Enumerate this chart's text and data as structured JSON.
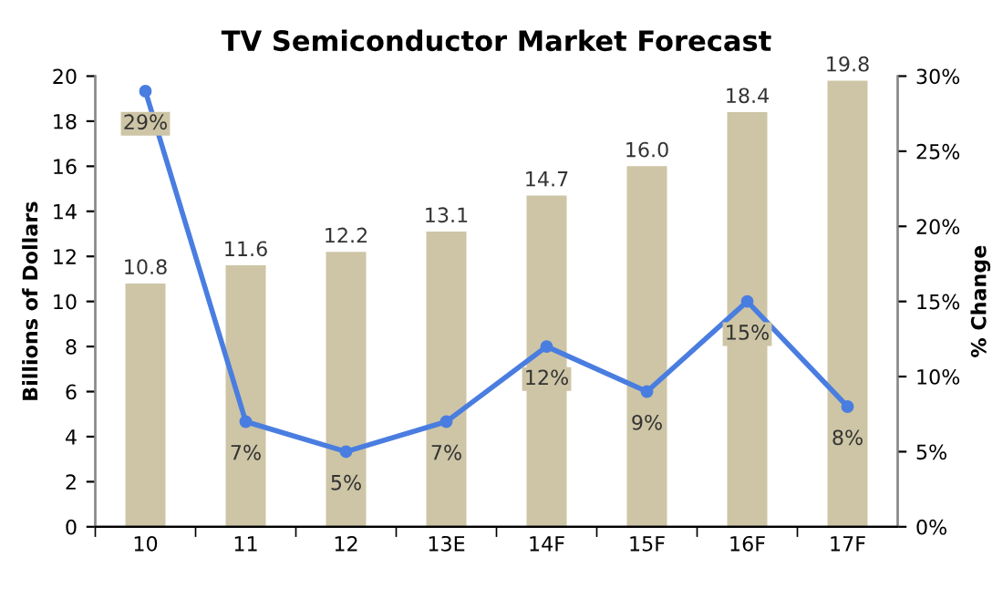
{
  "chart_data": {
    "type": "bar",
    "title": "TV Semiconductor Market Forecast",
    "ylabel": "Billions of Dollars",
    "y2label": "% Change",
    "categories": [
      "10",
      "11",
      "12",
      "13E",
      "14F",
      "15F",
      "16F",
      "17F"
    ],
    "series": [
      {
        "color": "#cdc5a5",
        "values": [
          10.8,
          11.6,
          12.2,
          13.1,
          14.7,
          16.0,
          18.4,
          19.8
        ],
        "value_labels": [
          "10.8",
          "11.6",
          "12.2",
          "13.1",
          "14.7",
          "16.0",
          "18.4",
          "19.8"
        ]
      },
      {
        "type": "line",
        "axis": "y2",
        "color": "#4a7de0",
        "marker": "circle",
        "line_style": "solid",
        "values": [
          29,
          7,
          5,
          7,
          12,
          9,
          15,
          8
        ],
        "value_labels": [
          "29%",
          "7%",
          "5%",
          "7%",
          "12%",
          "9%",
          "15%",
          "8%"
        ]
      }
    ],
    "ylim": [
      0,
      20
    ],
    "yticks": [
      0,
      2,
      4,
      6,
      8,
      10,
      12,
      14,
      16,
      18,
      20
    ],
    "y2lim": [
      0,
      30
    ],
    "y2ticks": [
      {
        "value": 0,
        "label": "0%"
      },
      {
        "value": 5,
        "label": "5%"
      },
      {
        "value": 10,
        "label": "10%"
      },
      {
        "value": 15,
        "label": "15%"
      },
      {
        "value": 20,
        "label": "20%"
      },
      {
        "value": 25,
        "label": "25%"
      },
      {
        "value": 30,
        "label": "30%"
      }
    ],
    "grid": false,
    "legend": false
  }
}
